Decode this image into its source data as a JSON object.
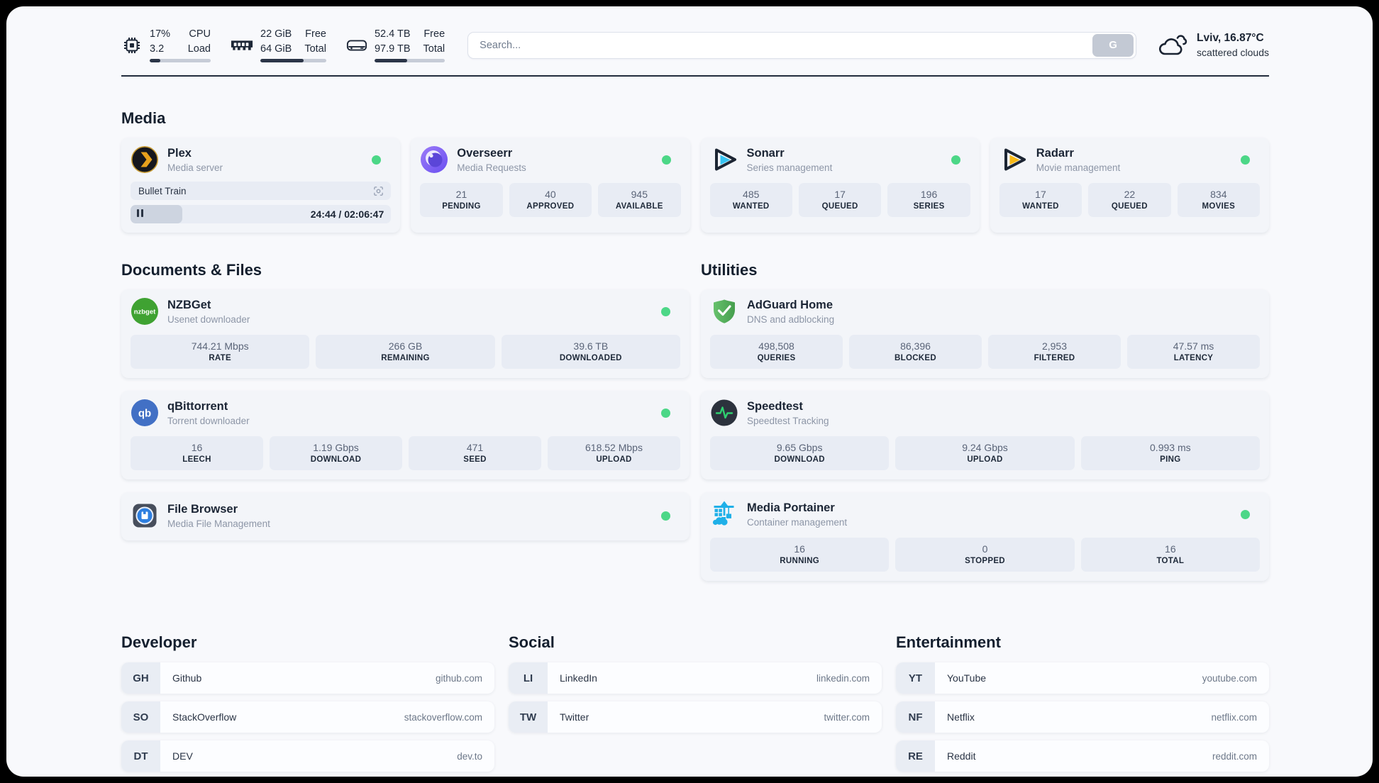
{
  "header": {
    "stats": [
      {
        "icon": "cpu-icon",
        "values": [
          "17%",
          "3.2"
        ],
        "labels": [
          "CPU",
          "Load"
        ],
        "progress": 17
      },
      {
        "icon": "memory-icon",
        "values": [
          "22 GiB",
          "64 GiB"
        ],
        "labels": [
          "Free",
          "Total"
        ],
        "progress": 66
      },
      {
        "icon": "disk-icon",
        "values": [
          "52.4 TB",
          "97.9 TB"
        ],
        "labels": [
          "Free",
          "Total"
        ],
        "progress": 46
      }
    ],
    "search": {
      "placeholder": "Search...",
      "button_label": "G"
    },
    "weather": {
      "icon": "cloud-icon",
      "location": "Lviv, 16.87°C",
      "condition": "scattered clouds"
    }
  },
  "sections": {
    "media": {
      "title": "Media",
      "apps": {
        "plex": {
          "name": "Plex",
          "desc": "Media server",
          "online": true,
          "now_playing": "Bullet Train",
          "time": "24:44 / 02:06:47",
          "progress": 20
        },
        "overseerr": {
          "name": "Overseerr",
          "desc": "Media Requests",
          "online": true,
          "stats": [
            {
              "value": "21",
              "label": "PENDING"
            },
            {
              "value": "40",
              "label": "APPROVED"
            },
            {
              "value": "945",
              "label": "AVAILABLE"
            }
          ]
        },
        "sonarr": {
          "name": "Sonarr",
          "desc": "Series management",
          "online": true,
          "stats": [
            {
              "value": "485",
              "label": "WANTED"
            },
            {
              "value": "17",
              "label": "QUEUED"
            },
            {
              "value": "196",
              "label": "SERIES"
            }
          ]
        },
        "radarr": {
          "name": "Radarr",
          "desc": "Movie management",
          "online": true,
          "stats": [
            {
              "value": "17",
              "label": "WANTED"
            },
            {
              "value": "22",
              "label": "QUEUED"
            },
            {
              "value": "834",
              "label": "MOVIES"
            }
          ]
        }
      }
    },
    "documents": {
      "title": "Documents & Files",
      "apps": {
        "nzbget": {
          "name": "NZBGet",
          "desc": "Usenet downloader",
          "icon_text": "nzbget",
          "online": true,
          "stats": [
            {
              "value": "744.21 Mbps",
              "label": "RATE"
            },
            {
              "value": "266 GB",
              "label": "REMAINING"
            },
            {
              "value": "39.6 TB",
              "label": "DOWNLOADED"
            }
          ]
        },
        "qbittorrent": {
          "name": "qBittorrent",
          "desc": "Torrent downloader",
          "icon_text": "qb",
          "online": true,
          "stats": [
            {
              "value": "16",
              "label": "LEECH"
            },
            {
              "value": "1.19 Gbps",
              "label": "DOWNLOAD"
            },
            {
              "value": "471",
              "label": "SEED"
            },
            {
              "value": "618.52 Mbps",
              "label": "UPLOAD"
            }
          ]
        },
        "filebrowser": {
          "name": "File Browser",
          "desc": "Media File Management",
          "online": true
        }
      }
    },
    "utilities": {
      "title": "Utilities",
      "apps": {
        "adguard": {
          "name": "AdGuard Home",
          "desc": "DNS and adblocking",
          "stats": [
            {
              "value": "498,508",
              "label": "QUERIES"
            },
            {
              "value": "86,396",
              "label": "BLOCKED"
            },
            {
              "value": "2,953",
              "label": "FILTERED"
            },
            {
              "value": "47.57 ms",
              "label": "LATENCY"
            }
          ]
        },
        "speedtest": {
          "name": "Speedtest",
          "desc": "Speedtest Tracking",
          "stats": [
            {
              "value": "9.65 Gbps",
              "label": "DOWNLOAD"
            },
            {
              "value": "9.24 Gbps",
              "label": "UPLOAD"
            },
            {
              "value": "0.993 ms",
              "label": "PING"
            }
          ]
        },
        "portainer": {
          "name": "Media Portainer",
          "desc": "Container management",
          "online": true,
          "stats": [
            {
              "value": "16",
              "label": "RUNNING"
            },
            {
              "value": "0",
              "label": "STOPPED"
            },
            {
              "value": "16",
              "label": "TOTAL"
            }
          ]
        }
      }
    }
  },
  "bookmarks": {
    "developer": {
      "title": "Developer",
      "links": [
        {
          "abbr": "GH",
          "name": "Github",
          "url": "github.com"
        },
        {
          "abbr": "SO",
          "name": "StackOverflow",
          "url": "stackoverflow.com"
        },
        {
          "abbr": "DT",
          "name": "DEV",
          "url": "dev.to"
        }
      ]
    },
    "social": {
      "title": "Social",
      "links": [
        {
          "abbr": "LI",
          "name": "LinkedIn",
          "url": "linkedin.com"
        },
        {
          "abbr": "TW",
          "name": "Twitter",
          "url": "twitter.com"
        }
      ]
    },
    "entertainment": {
      "title": "Entertainment",
      "links": [
        {
          "abbr": "YT",
          "name": "YouTube",
          "url": "youtube.com"
        },
        {
          "abbr": "NF",
          "name": "Netflix",
          "url": "netflix.com"
        },
        {
          "abbr": "RE",
          "name": "Reddit",
          "url": "reddit.com"
        }
      ]
    }
  },
  "colors": {
    "status_online": "#4cd787",
    "brand_plex": "#e8a11c",
    "brand_sonarr": "#36c3f1",
    "brand_radarr": "#f7b815",
    "brand_nzbget": "#3fa232",
    "brand_qbittorrent": "#4270c5",
    "brand_adguard": "#4caf50",
    "brand_speedtest_pulse": "#2fd06f",
    "brand_portainer": "#1fb0e8"
  }
}
